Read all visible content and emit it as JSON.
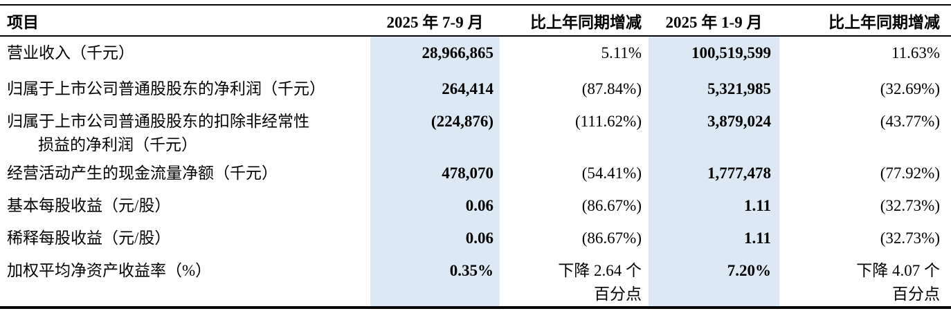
{
  "colors": {
    "highlight_column_bg": "#DCE9F4",
    "border": "#000000",
    "text": "#000000"
  },
  "table": {
    "headers": [
      "项目",
      "2025 年 7-9 月",
      "比上年同期增减",
      "2025 年 1-9 月",
      "比上年同期增减"
    ],
    "rows": [
      {
        "label": "营业收入（千元）",
        "q3_2025": "28,966,865",
        "q3_yoy": "5.11%",
        "ytd_2025": "100,519,599",
        "ytd_yoy": "11.63%"
      },
      {
        "label": "归属于上市公司普通股股东的净利润（千元）",
        "q3_2025": "264,414",
        "q3_yoy": "(87.84%)",
        "ytd_2025": "5,321,985",
        "ytd_yoy": "(32.69%)"
      },
      {
        "label": "归属于上市公司普通股股东的扣除非经常性\n损益的净利润（千元）",
        "q3_2025": "(224,876)",
        "q3_yoy": "(111.62%)",
        "ytd_2025": "3,879,024",
        "ytd_yoy": "(43.77%)"
      },
      {
        "label": "经营活动产生的现金流量净额（千元）",
        "q3_2025": "478,070",
        "q3_yoy": "(54.41%)",
        "ytd_2025": "1,777,478",
        "ytd_yoy": "(77.92%)"
      },
      {
        "label": "基本每股收益（元/股）",
        "q3_2025": "0.06",
        "q3_yoy": "(86.67%)",
        "ytd_2025": "1.11",
        "ytd_yoy": "(32.73%)"
      },
      {
        "label": "稀释每股收益（元/股）",
        "q3_2025": "0.06",
        "q3_yoy": "(86.67%)",
        "ytd_2025": "1.11",
        "ytd_yoy": "(32.73%)"
      },
      {
        "label": "加权平均净资产收益率（%）",
        "q3_2025": "0.35%",
        "q3_yoy": "下降 2.64 个\n百分点",
        "ytd_2025": "7.20%",
        "ytd_yoy": "下降 4.07 个\n百分点"
      }
    ]
  }
}
